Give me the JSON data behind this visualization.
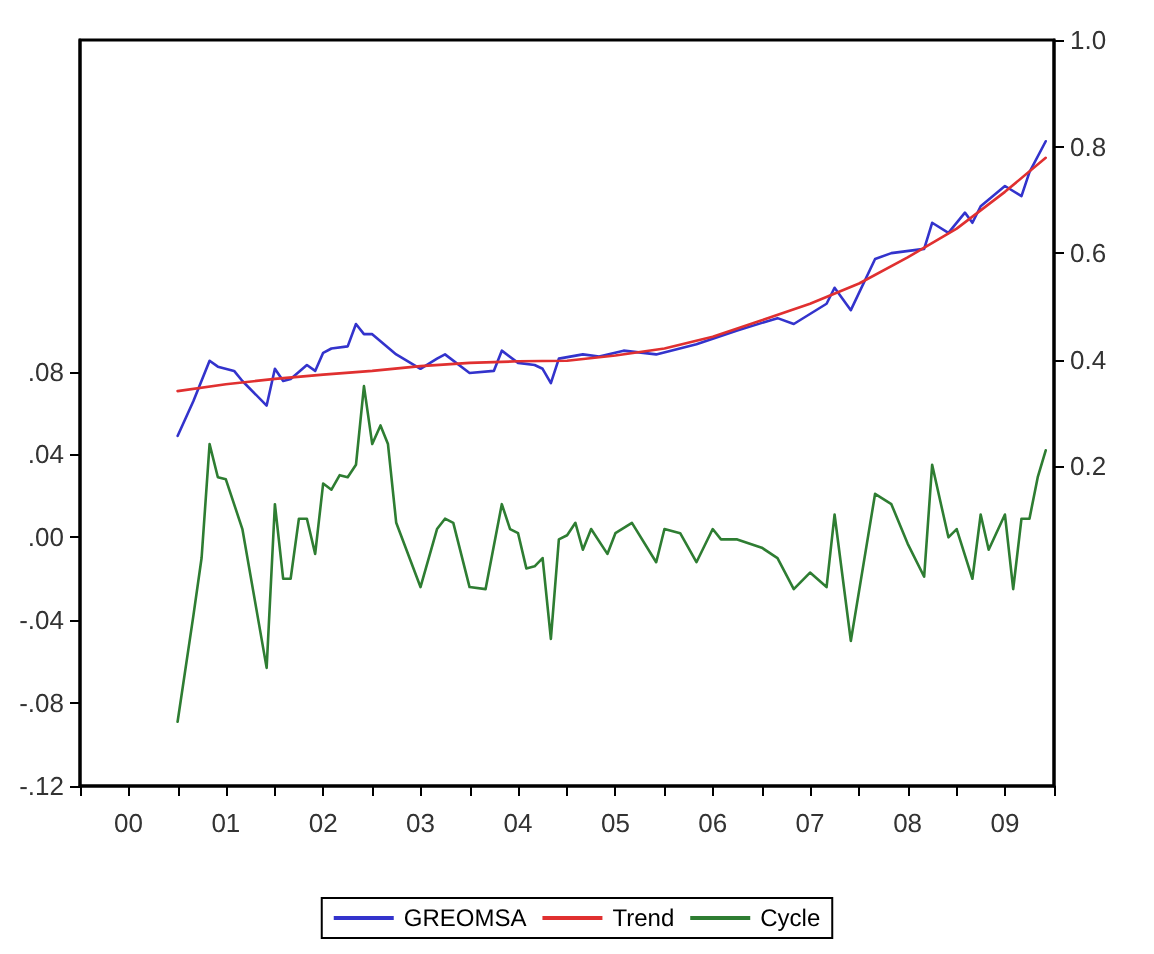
{
  "chart_data": {
    "type": "line",
    "x": [
      "2001-01",
      "2001-03",
      "2001-04",
      "2001-05",
      "2001-06",
      "2001-07",
      "2001-09",
      "2001-12",
      "2002-01",
      "2002-02",
      "2002-03",
      "2002-04",
      "2002-05",
      "2002-06",
      "2002-07",
      "2002-08",
      "2002-09",
      "2002-10",
      "2002-11",
      "2002-12",
      "2003-01",
      "2003-02",
      "2003-03",
      "2003-04",
      "2003-07",
      "2003-09",
      "2003-10",
      "2003-11",
      "2004-01",
      "2004-03",
      "2004-05",
      "2004-06",
      "2004-07",
      "2004-08",
      "2004-09",
      "2004-10",
      "2004-11",
      "2004-12",
      "2005-01",
      "2005-02",
      "2005-03",
      "2005-04",
      "2005-06",
      "2005-07",
      "2005-09",
      "2005-12",
      "2006-01",
      "2006-03",
      "2006-05",
      "2006-07",
      "2006-08",
      "2006-10",
      "2007-01",
      "2007-03",
      "2007-05",
      "2007-07",
      "2007-09",
      "2007-10",
      "2007-12",
      "2008-03",
      "2008-05",
      "2008-07",
      "2008-09",
      "2008-10",
      "2008-12",
      "2009-01",
      "2009-03",
      "2009-04",
      "2009-05",
      "2009-07",
      "2009-08",
      "2009-09",
      "2009-10",
      "2009-11",
      "2009-12"
    ],
    "series": [
      {
        "name": "GREOMSA",
        "color": "#3333cc",
        "axis": "y2",
        "x": [
          "2001-01",
          "2001-03",
          "2001-05",
          "2001-06",
          "2001-08",
          "2001-09",
          "2001-12",
          "2002-01",
          "2002-02",
          "2002-03",
          "2002-05",
          "2002-06",
          "2002-07",
          "2002-08",
          "2002-10",
          "2002-11",
          "2002-12",
          "2003-01",
          "2003-04",
          "2003-07",
          "2003-09",
          "2003-10",
          "2004-01",
          "2004-04",
          "2004-05",
          "2004-07",
          "2004-09",
          "2004-10",
          "2004-11",
          "2004-12",
          "2005-03",
          "2005-05",
          "2005-08",
          "2005-12",
          "2006-05",
          "2006-10",
          "2007-03",
          "2007-05",
          "2007-09",
          "2007-10",
          "2007-12",
          "2008-03",
          "2008-05",
          "2008-09",
          "2008-10",
          "2008-12",
          "2009-02",
          "2009-03",
          "2009-04",
          "2009-07",
          "2009-09",
          "2009-10",
          "2009-12"
        ],
        "values": [
          0.257,
          0.322,
          0.398,
          0.387,
          0.379,
          0.36,
          0.314,
          0.383,
          0.36,
          0.364,
          0.39,
          0.379,
          0.413,
          0.421,
          0.425,
          0.467,
          0.448,
          0.448,
          0.41,
          0.383,
          0.402,
          0.41,
          0.375,
          0.379,
          0.417,
          0.394,
          0.39,
          0.383,
          0.356,
          0.402,
          0.41,
          0.406,
          0.417,
          0.41,
          0.429,
          0.455,
          0.478,
          0.467,
          0.505,
          0.535,
          0.493,
          0.589,
          0.6,
          0.608,
          0.657,
          0.638,
          0.676,
          0.657,
          0.688,
          0.726,
          0.707,
          0.752,
          0.81
        ]
      },
      {
        "name": "Trend",
        "color": "#e03030",
        "axis": "y2",
        "x": [
          "2001-01",
          "2001-07",
          "2002-01",
          "2002-07",
          "2003-01",
          "2003-07",
          "2004-01",
          "2004-07",
          "2005-01",
          "2005-07",
          "2006-01",
          "2006-07",
          "2007-01",
          "2007-07",
          "2008-01",
          "2008-07",
          "2009-01",
          "2009-07",
          "2009-12"
        ],
        "values": [
          0.341,
          0.354,
          0.364,
          0.372,
          0.379,
          0.388,
          0.394,
          0.397,
          0.398,
          0.408,
          0.421,
          0.443,
          0.474,
          0.505,
          0.543,
          0.592,
          0.646,
          0.715,
          0.779
        ]
      },
      {
        "name": "Cycle",
        "color": "#2e7d32",
        "axis": "y",
        "values": [
          -0.089,
          -0.038,
          -0.01,
          0.045,
          0.029,
          0.028,
          0.004,
          -0.063,
          0.016,
          -0.02,
          -0.02,
          0.009,
          0.009,
          -0.008,
          0.026,
          0.023,
          0.03,
          0.029,
          0.035,
          0.073,
          0.045,
          0.054,
          0.045,
          0.007,
          -0.024,
          0.004,
          0.009,
          0.007,
          -0.024,
          -0.025,
          0.016,
          0.004,
          0.002,
          -0.015,
          -0.014,
          -0.01,
          -0.049,
          -0.001,
          0.001,
          0.007,
          -0.006,
          0.004,
          -0.008,
          0.002,
          0.007,
          -0.012,
          0.004,
          0.002,
          -0.012,
          0.004,
          -0.001,
          -0.001,
          -0.005,
          -0.01,
          -0.025,
          -0.017,
          -0.024,
          0.011,
          -0.05,
          0.021,
          0.016,
          -0.003,
          -0.019,
          0.035,
          0.0,
          0.004,
          -0.02,
          0.011,
          -0.006,
          0.011,
          -0.025,
          0.009,
          0.009,
          0.029,
          0.042
        ]
      }
    ],
    "xlim": [
      "2000-01",
      "2010-01"
    ],
    "xticks": [
      {
        "value": "2000-01",
        "label": null
      },
      {
        "value": "2000-07",
        "label": "00"
      },
      {
        "value": "2001-01",
        "label": null
      },
      {
        "value": "2001-07",
        "label": "01"
      },
      {
        "value": "2002-01",
        "label": null
      },
      {
        "value": "2002-07",
        "label": "02"
      },
      {
        "value": "2003-01",
        "label": null
      },
      {
        "value": "2003-07",
        "label": "03"
      },
      {
        "value": "2004-01",
        "label": null
      },
      {
        "value": "2004-07",
        "label": "04"
      },
      {
        "value": "2005-01",
        "label": null
      },
      {
        "value": "2005-07",
        "label": "05"
      },
      {
        "value": "2006-01",
        "label": null
      },
      {
        "value": "2006-07",
        "label": "06"
      },
      {
        "value": "2007-01",
        "label": null
      },
      {
        "value": "2007-07",
        "label": "07"
      },
      {
        "value": "2008-01",
        "label": null
      },
      {
        "value": "2008-07",
        "label": "08"
      },
      {
        "value": "2009-01",
        "label": null
      },
      {
        "value": "2009-07",
        "label": "09"
      },
      {
        "value": "2010-01",
        "label": null
      }
    ],
    "ylim": [
      -0.12,
      0.24
    ],
    "yticks": [
      {
        "value": -0.12,
        "label": "-.12"
      },
      {
        "value": -0.08,
        "label": "-.08"
      },
      {
        "value": -0.04,
        "label": "-.04"
      },
      {
        "value": 0,
        "label": ".00"
      },
      {
        "value": 0.04,
        "label": ".04"
      },
      {
        "value": 0.08,
        "label": ".08"
      }
    ],
    "y2lim": [
      -0.4,
      1.0
    ],
    "y2ticks": [
      0.2,
      0.4,
      0.6,
      0.8,
      {
        "value": 1.0,
        "label": "1.0"
      }
    ],
    "legend": "bottom",
    "grid": false,
    "marker": "none",
    "line_style": "solid"
  }
}
